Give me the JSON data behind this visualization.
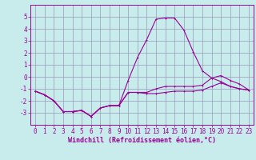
{
  "xlabel": "Windchill (Refroidissement éolien,°C)",
  "xlim": [
    -0.5,
    23.5
  ],
  "ylim": [
    -4,
    6
  ],
  "xticks": [
    0,
    1,
    2,
    3,
    4,
    5,
    6,
    7,
    8,
    9,
    10,
    11,
    12,
    13,
    14,
    15,
    16,
    17,
    18,
    19,
    20,
    21,
    22,
    23
  ],
  "yticks": [
    -3,
    -2,
    -1,
    0,
    1,
    2,
    3,
    4,
    5
  ],
  "background_color": "#c8ecec",
  "grid_color": "#9999bb",
  "line_color": "#990099",
  "line1_x": [
    0,
    1,
    2,
    3,
    4,
    5,
    6,
    7,
    8,
    9,
    10,
    11,
    12,
    13,
    14,
    15,
    16,
    17,
    18,
    19,
    20,
    21,
    22,
    23
  ],
  "line1_y": [
    -1.2,
    -1.5,
    -2.0,
    -2.9,
    -2.9,
    -2.8,
    -3.3,
    -2.6,
    -2.4,
    -2.4,
    -1.3,
    -1.3,
    -1.4,
    -1.4,
    -1.3,
    -1.2,
    -1.2,
    -1.2,
    -1.1,
    -0.8,
    -0.5,
    -0.8,
    -1.0,
    -1.1
  ],
  "line2_x": [
    0,
    1,
    2,
    3,
    4,
    5,
    6,
    7,
    8,
    9,
    10,
    11,
    12,
    13,
    14,
    15,
    16,
    17,
    18,
    19,
    20,
    21,
    22,
    23
  ],
  "line2_y": [
    -1.2,
    -1.5,
    -2.0,
    -2.9,
    -2.9,
    -2.8,
    -3.3,
    -2.6,
    -2.4,
    -2.4,
    -0.3,
    1.6,
    3.1,
    4.8,
    4.9,
    4.9,
    3.9,
    2.1,
    0.5,
    -0.1,
    -0.4,
    -0.8,
    -1.0,
    -1.1
  ],
  "line3_x": [
    0,
    1,
    2,
    3,
    4,
    5,
    6,
    7,
    8,
    9,
    10,
    11,
    12,
    13,
    14,
    15,
    16,
    17,
    18,
    19,
    20,
    21,
    22,
    23
  ],
  "line3_y": [
    -1.2,
    -1.5,
    -2.0,
    -2.9,
    -2.9,
    -2.8,
    -3.3,
    -2.6,
    -2.4,
    -2.4,
    -1.3,
    -1.3,
    -1.3,
    -1.0,
    -0.8,
    -0.8,
    -0.8,
    -0.8,
    -0.7,
    -0.1,
    0.1,
    -0.3,
    -0.6,
    -1.1
  ],
  "font_color": "#990099",
  "tick_fontsize": 5.5,
  "label_fontsize": 6.0
}
